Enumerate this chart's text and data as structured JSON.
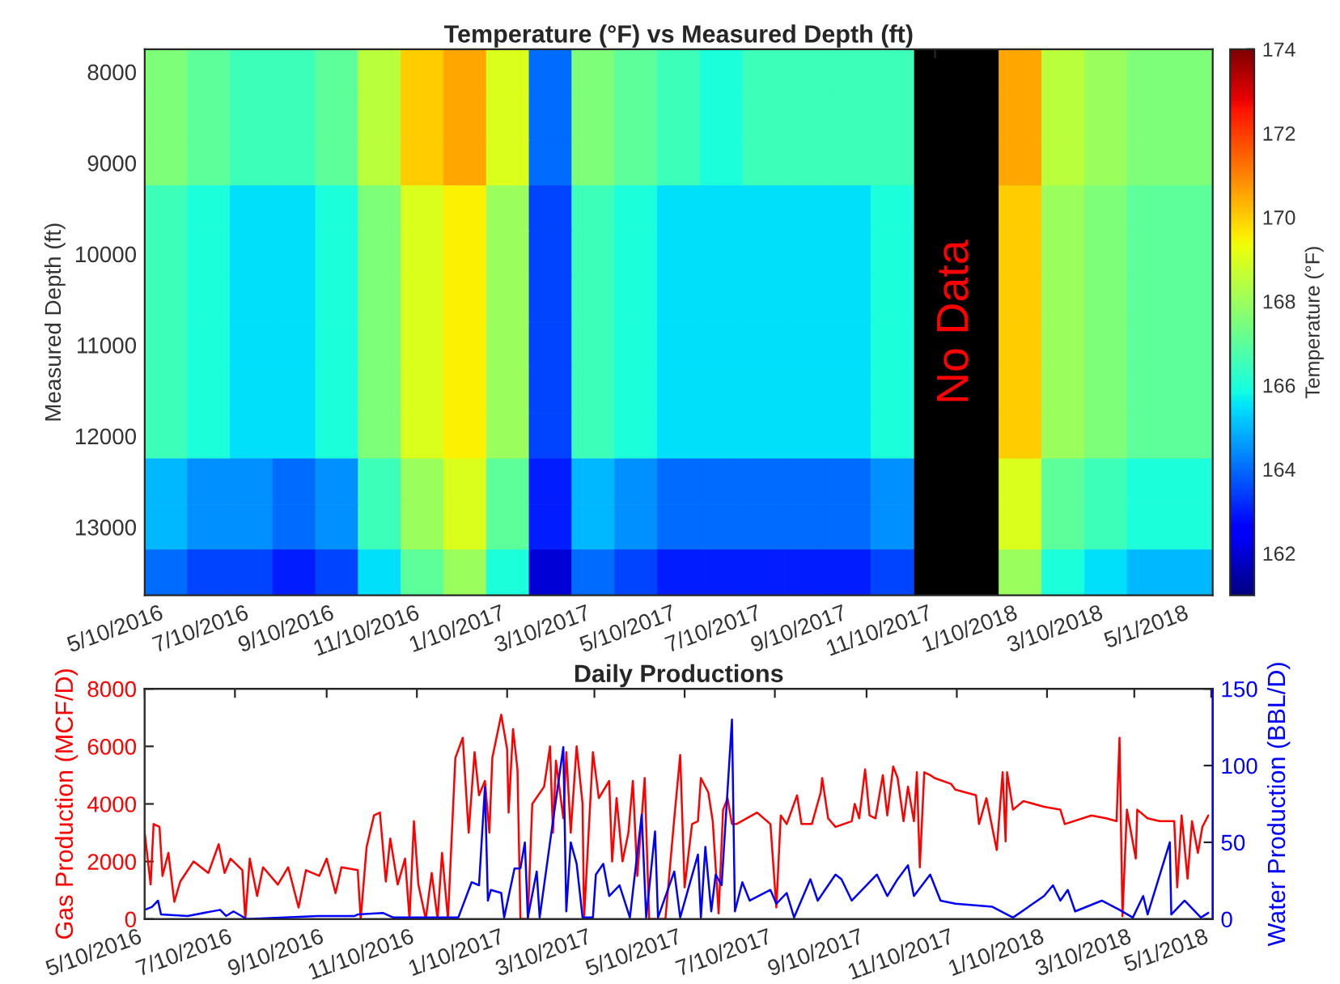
{
  "chart_data": [
    {
      "type": "heatmap",
      "title": "Temperature (°F) vs Measured Depth (ft)",
      "ylabel": "Measured Depth (ft)",
      "clabel": "Temperature (°F)",
      "categories": [
        "5/10/2016",
        null,
        "7/10/2016",
        null,
        "9/10/2016",
        null,
        "11/10/2016",
        null,
        "1/10/2017",
        null,
        "3/10/2017",
        null,
        "5/10/2017",
        null,
        "7/10/2017",
        null,
        "9/10/2017",
        null,
        "11/10/2017",
        null,
        "1/10/2018",
        null,
        "3/10/2018",
        null,
        "5/1/2018"
      ],
      "y_categories": [
        "8000",
        null,
        "9000",
        null,
        "10000",
        null,
        "11000",
        null,
        "12000",
        null,
        "13000",
        null
      ],
      "cells": [
        [
          167.5,
          167,
          166.5,
          166.5,
          167,
          168.5,
          170,
          170.5,
          169,
          164,
          167.5,
          167,
          166.5,
          166,
          166.5,
          166.5,
          166.5,
          166.5,
          null,
          null,
          170.5,
          168.5,
          168,
          167.5,
          167.5
        ],
        [
          167.5,
          167,
          166.5,
          166.5,
          167,
          168.5,
          170,
          170.5,
          169,
          164,
          167.5,
          167,
          166.5,
          166,
          166.5,
          166.5,
          166.5,
          166.5,
          null,
          null,
          170.5,
          168.5,
          168,
          167.5,
          167.5
        ],
        [
          167.5,
          167,
          166.5,
          166.5,
          167,
          168.5,
          170,
          170.5,
          169,
          164,
          167.5,
          167,
          166.5,
          166,
          166.5,
          166.5,
          166.5,
          166.5,
          null,
          null,
          170.5,
          168.5,
          168,
          167.5,
          167.5
        ],
        [
          166.5,
          166,
          165.5,
          165.5,
          166,
          167.5,
          169,
          169.5,
          168,
          163.5,
          166.5,
          166,
          165.5,
          165.5,
          165.5,
          165.5,
          165.5,
          166,
          null,
          null,
          170,
          168,
          167.5,
          167,
          167
        ],
        [
          166.5,
          166,
          165.5,
          165.5,
          166,
          167.5,
          169,
          169.5,
          168,
          163.5,
          166.5,
          166,
          165.5,
          165.5,
          165.5,
          165.5,
          165.5,
          166,
          null,
          null,
          170,
          168,
          167.5,
          167,
          167
        ],
        [
          166.5,
          166,
          165.5,
          165.5,
          166,
          167.5,
          169,
          169.5,
          168,
          163.5,
          166.5,
          166,
          165.5,
          165.5,
          165.5,
          165.5,
          165.5,
          166,
          null,
          null,
          170,
          168,
          167.5,
          167,
          167
        ],
        [
          166.5,
          166,
          165.5,
          165.5,
          166,
          167.5,
          169,
          169.5,
          168,
          163.5,
          166.5,
          166,
          165.5,
          165.5,
          165.5,
          165.5,
          165.5,
          166,
          null,
          null,
          170,
          168,
          167.5,
          167,
          167
        ],
        [
          166.5,
          166,
          165.5,
          165.5,
          166,
          167.5,
          169,
          169.5,
          168,
          163.5,
          166.5,
          166,
          165.5,
          165.5,
          165.5,
          165.5,
          165.5,
          166,
          null,
          null,
          170,
          168,
          167.5,
          167,
          167
        ],
        [
          166.5,
          166,
          165.5,
          165.5,
          166,
          167.5,
          169,
          169.5,
          168,
          163.5,
          166.5,
          166,
          165.5,
          165.5,
          165.5,
          165.5,
          165.5,
          166,
          null,
          null,
          170,
          168,
          167.5,
          167,
          167
        ],
        [
          165,
          164.5,
          164.5,
          164,
          164.5,
          166.5,
          168,
          169,
          167,
          163,
          165,
          164.5,
          164,
          164,
          164,
          164,
          164,
          164.5,
          null,
          null,
          169,
          167,
          166.5,
          166,
          166
        ],
        [
          165,
          164.5,
          164.5,
          164,
          164.5,
          166.5,
          168,
          169,
          167,
          163,
          165,
          164.5,
          164,
          164,
          164,
          164,
          164,
          164.5,
          null,
          null,
          169,
          167,
          166.5,
          166,
          166
        ],
        [
          164,
          163.5,
          163.5,
          163,
          163.5,
          165.5,
          167,
          168,
          166,
          162,
          164,
          163.5,
          163,
          163,
          163,
          163,
          163,
          163.5,
          null,
          null,
          168,
          166,
          165.5,
          165,
          165
        ]
      ],
      "clim": [
        161,
        174
      ],
      "cticks": [
        162,
        164,
        166,
        168,
        170,
        172,
        174
      ],
      "annotations": [
        "No Data"
      ]
    },
    {
      "type": "line",
      "title": "Daily Productions",
      "ylabel": "Gas Production (MCF/D)",
      "y2label": "Water Production (BBL/D)",
      "xlim": [
        "2016-05-10",
        "2018-05-02"
      ],
      "xticks": [
        {
          "value": "2016-05-10",
          "label": "5/10/2016"
        },
        {
          "value": "2016-07-10",
          "label": "7/10/2016"
        },
        {
          "value": "2016-09-10",
          "label": "9/10/2016"
        },
        {
          "value": "2016-11-10",
          "label": "11/10/2016"
        },
        {
          "value": "2017-01-10",
          "label": "1/10/2017"
        },
        {
          "value": "2017-03-10",
          "label": "3/10/2017"
        },
        {
          "value": "2017-05-10",
          "label": "5/10/2017"
        },
        {
          "value": "2017-07-10",
          "label": "7/10/2017"
        },
        {
          "value": "2017-09-10",
          "label": "9/10/2017"
        },
        {
          "value": "2017-11-10",
          "label": "11/10/2017"
        },
        {
          "value": "2018-01-10",
          "label": "1/10/2018"
        },
        {
          "value": "2018-03-10",
          "label": "3/10/2018"
        },
        {
          "value": "2018-05-01",
          "label": "5/1/2018"
        }
      ],
      "ylim": [
        0,
        8000
      ],
      "yticks": [
        0,
        2000,
        4000,
        6000,
        8000
      ],
      "y2lim": [
        0,
        150
      ],
      "y2ticks": [
        0,
        50,
        100,
        150
      ],
      "series": [
        {
          "color": "#ff0000",
          "axis": "y",
          "x": [
            "2016-05-10",
            "2016-05-14",
            "2016-05-16",
            "2016-05-20",
            "2016-05-22",
            "2016-05-26",
            "2016-05-30",
            "2016-06-03",
            "2016-06-12",
            "2016-06-22",
            "2016-06-29",
            "2016-07-03",
            "2016-07-07",
            "2016-07-15",
            "2016-07-17",
            "2016-07-20",
            "2016-07-25",
            "2016-07-29",
            "2016-08-08",
            "2016-08-15",
            "2016-08-22",
            "2016-08-27",
            "2016-09-05",
            "2016-09-10",
            "2016-09-16",
            "2016-09-20",
            "2016-10-01",
            "2016-10-03",
            "2016-10-07",
            "2016-10-12",
            "2016-10-16",
            "2016-10-20",
            "2016-10-23",
            "2016-10-28",
            "2016-11-02",
            "2016-11-05",
            "2016-11-08",
            "2016-11-11",
            "2016-11-16",
            "2016-11-20",
            "2016-11-24",
            "2016-11-27",
            "2016-12-01",
            "2016-12-06",
            "2016-12-11",
            "2016-12-15",
            "2016-12-19",
            "2016-12-22",
            "2016-12-26",
            "2016-12-29",
            "2016-12-31",
            "2017-01-06",
            "2017-01-10",
            "2017-01-11",
            "2017-01-14",
            "2017-01-17",
            "2017-01-19",
            "2017-01-24",
            "2017-01-27",
            "2017-02-04",
            "2017-02-08",
            "2017-02-10",
            "2017-02-12",
            "2017-02-17",
            "2017-02-19",
            "2017-02-22",
            "2017-02-26",
            "2017-03-02",
            "2017-03-03",
            "2017-03-09",
            "2017-03-13",
            "2017-03-20",
            "2017-03-22",
            "2017-03-25",
            "2017-03-29",
            "2017-04-02",
            "2017-04-05",
            "2017-04-08",
            "2017-04-13",
            "2017-04-16",
            "2017-04-27",
            "2017-05-03",
            "2017-05-07",
            "2017-05-10",
            "2017-05-15",
            "2017-05-19",
            "2017-05-21",
            "2017-05-26",
            "2017-05-29",
            "2017-06-02",
            "2017-06-05",
            "2017-06-08",
            "2017-06-11",
            "2017-06-14",
            "2017-06-28",
            "2017-07-07",
            "2017-07-11",
            "2017-07-14",
            "2017-07-18",
            "2017-07-25",
            "2017-07-28",
            "2017-08-04",
            "2017-08-10",
            "2017-08-11",
            "2017-08-15",
            "2017-08-20",
            "2017-08-31",
            "2017-09-02",
            "2017-09-05",
            "2017-09-09",
            "2017-09-12",
            "2017-09-16",
            "2017-09-21",
            "2017-09-24",
            "2017-09-28",
            "2017-10-01",
            "2017-10-05",
            "2017-10-08",
            "2017-10-12",
            "2017-10-14",
            "2017-10-16",
            "2017-10-19",
            "2017-10-23",
            "2017-10-26",
            "2017-11-06",
            "2017-11-09",
            "2017-11-23",
            "2017-11-25",
            "2017-11-30",
            "2017-12-07",
            "2017-12-11",
            "2017-12-13",
            "2017-12-14",
            "2017-12-18",
            "2017-12-25",
            "2018-01-08",
            "2018-01-19",
            "2018-01-22",
            "2018-02-09",
            "2018-02-19",
            "2018-02-26",
            "2018-02-28",
            "2018-03-02",
            "2018-03-05",
            "2018-03-11",
            "2018-03-12",
            "2018-03-19",
            "2018-03-27",
            "2018-04-06",
            "2018-04-08",
            "2018-04-11",
            "2018-04-15",
            "2018-04-18",
            "2018-04-22",
            "2018-04-25",
            "2018-04-29"
          ],
          "values": [
            3000,
            1200,
            3300,
            3200,
            1500,
            2300,
            600,
            1300,
            2000,
            1600,
            2600,
            1600,
            2100,
            1700,
            0,
            2100,
            800,
            1800,
            1200,
            1800,
            400,
            1700,
            1500,
            2100,
            900,
            1800,
            1700,
            0,
            2500,
            3600,
            3700,
            1300,
            2800,
            1200,
            2100,
            0,
            3400,
            1200,
            0,
            1600,
            0,
            2300,
            0,
            5600,
            6300,
            3000,
            5800,
            4300,
            4800,
            3000,
            5600,
            7100,
            5900,
            3700,
            6600,
            5200,
            0,
            0,
            4000,
            4600,
            6000,
            3000,
            5500,
            3500,
            5800,
            3000,
            6000,
            4000,
            0,
            5800,
            4200,
            4800,
            2000,
            4200,
            2000,
            3000,
            4800,
            1500,
            4900,
            0,
            0,
            3500,
            5700,
            1100,
            3300,
            3400,
            4900,
            4400,
            3400,
            200,
            3800,
            4200,
            3300,
            3300,
            3700,
            3300,
            400,
            3600,
            3300,
            4300,
            3300,
            3300,
            4400,
            4900,
            3500,
            3200,
            3400,
            4000,
            3500,
            5200,
            3600,
            3500,
            5000,
            3600,
            5300,
            4900,
            3400,
            4600,
            3400,
            5100,
            1800,
            5100,
            5000,
            4900,
            4700,
            4500,
            4300,
            3300,
            4200,
            2400,
            5100,
            2700,
            5100,
            3800,
            4100,
            3900,
            3800,
            3300,
            3600,
            3500,
            3400,
            6300,
            100,
            3800,
            2100,
            3800,
            3500,
            3400,
            3400,
            1100,
            3600,
            1400,
            3400,
            2300,
            3200,
            3600
          ]
        },
        {
          "color": "#0000ff",
          "axis": "y2",
          "x": [
            "2016-05-10",
            "2016-05-15",
            "2016-05-19",
            "2016-05-21",
            "2016-06-08",
            "2016-06-30",
            "2016-07-04",
            "2016-07-09",
            "2016-07-18",
            "2016-09-04",
            "2016-09-29",
            "2016-10-01",
            "2016-10-18",
            "2016-10-25",
            "2016-11-30",
            "2016-12-08",
            "2016-12-17",
            "2016-12-22",
            "2016-12-26",
            "2016-12-28",
            "2016-12-30",
            "2017-01-06",
            "2017-01-08",
            "2017-01-15",
            "2017-01-19",
            "2017-01-22",
            "2017-01-24",
            "2017-01-30",
            "2017-02-01",
            "2017-02-08",
            "2017-02-17",
            "2017-02-19",
            "2017-02-22",
            "2017-02-26",
            "2017-03-02",
            "2017-03-09",
            "2017-03-11",
            "2017-03-16",
            "2017-03-20",
            "2017-03-27",
            "2017-04-03",
            "2017-04-11",
            "2017-04-14",
            "2017-04-20",
            "2017-04-22",
            "2017-05-03",
            "2017-05-07",
            "2017-05-19",
            "2017-05-21",
            "2017-05-24",
            "2017-05-28",
            "2017-05-31",
            "2017-06-04",
            "2017-06-11",
            "2017-06-13",
            "2017-06-18",
            "2017-06-23",
            "2017-07-07",
            "2017-07-11",
            "2017-07-18",
            "2017-07-23",
            "2017-08-03",
            "2017-08-08",
            "2017-08-20",
            "2017-08-24",
            "2017-08-31",
            "2017-09-17",
            "2017-09-24",
            "2017-10-01",
            "2017-10-08",
            "2017-10-12",
            "2017-10-23",
            "2017-10-30",
            "2017-11-09",
            "2017-12-04",
            "2017-12-18",
            "2018-01-08",
            "2018-01-14",
            "2018-01-19",
            "2018-01-24",
            "2018-01-29",
            "2018-02-16",
            "2018-02-28",
            "2018-03-09",
            "2018-03-16",
            "2018-03-19",
            "2018-04-03",
            "2018-04-04",
            "2018-04-13",
            "2018-04-24",
            "2018-04-29"
          ],
          "values": [
            6,
            8,
            12,
            3,
            2,
            6,
            2,
            5,
            0,
            2,
            2,
            3,
            4,
            1,
            1,
            1,
            24,
            22,
            86,
            12,
            19,
            17,
            1,
            33,
            33,
            50,
            1,
            31,
            1,
            50,
            112,
            5,
            50,
            36,
            1,
            1,
            29,
            36,
            15,
            22,
            1,
            68,
            1,
            57,
            1,
            31,
            1,
            42,
            1,
            47,
            5,
            29,
            22,
            130,
            5,
            24,
            12,
            19,
            10,
            17,
            1,
            26,
            12,
            29,
            26,
            12,
            29,
            15,
            26,
            35,
            15,
            29,
            12,
            10,
            8,
            1,
            15,
            22,
            12,
            19,
            5,
            12,
            6,
            1,
            15,
            3,
            50,
            3,
            12,
            1,
            4
          ]
        }
      ]
    }
  ]
}
